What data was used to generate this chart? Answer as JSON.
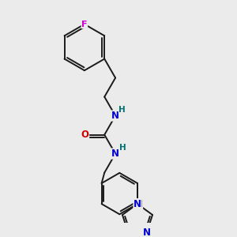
{
  "bg_color": "#ebebeb",
  "atom_colors": {
    "C": "#000000",
    "N": "#0000cc",
    "O": "#cc0000",
    "F": "#cc00cc",
    "H": "#007070"
  },
  "bond_color": "#1a1a1a",
  "bond_lw": 1.4
}
